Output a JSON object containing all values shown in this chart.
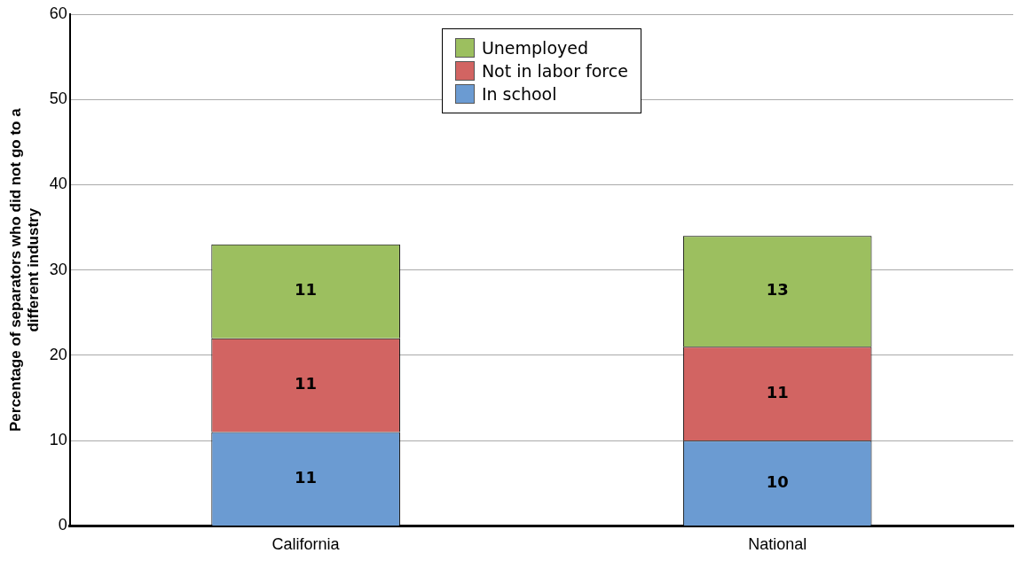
{
  "chart_data": {
    "type": "bar",
    "stacked": true,
    "ylabel": "Percentage of separators who did not go to a different industry",
    "categories": [
      "California",
      "National"
    ],
    "series": [
      {
        "name": "In school",
        "color": "#6b9bd2",
        "values": [
          11,
          10
        ]
      },
      {
        "name": "Not in labor force",
        "color": "#d26462",
        "values": [
          11,
          11
        ]
      },
      {
        "name": "Unemployed",
        "color": "#9cbf5f",
        "values": [
          11,
          13
        ]
      }
    ],
    "ylim": [
      0,
      60
    ],
    "yticks": [
      0,
      10,
      20,
      30,
      40,
      50,
      60
    ],
    "grid": "y",
    "legend": "top",
    "data_labels": true
  }
}
